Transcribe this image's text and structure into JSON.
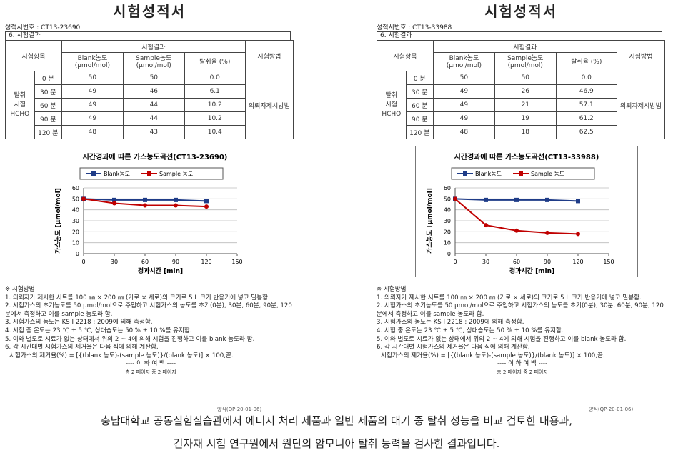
{
  "docs": [
    {
      "title": "시험성적서",
      "report_no": "성적서번호 : CT13-23690",
      "section": "6. 시험결과",
      "table": {
        "head": [
          "시험항목",
          "시험결과",
          "시험방법"
        ],
        "subhead": [
          [
            "Blank농도",
            "(μmol/mol)"
          ],
          [
            "Sample농도",
            "(μmol/mol)"
          ],
          [
            "탈취율 (%)"
          ]
        ],
        "item": [
          "탈취",
          "시험",
          "HCHO"
        ],
        "rows": [
          [
            "0 분",
            "50",
            "50",
            "0.0"
          ],
          [
            "30 분",
            "49",
            "46",
            "6.1"
          ],
          [
            "60 분",
            "49",
            "44",
            "10.2"
          ],
          [
            "90 분",
            "49",
            "44",
            "10.2"
          ],
          [
            "120 분",
            "48",
            "43",
            "10.4"
          ]
        ],
        "method": "의뢰자제시방법"
      },
      "chart_data": {
        "type": "line",
        "title": "시간경과에 따른 가스농도곡선(CT13-23690)",
        "x_label": "경과시간 [min]",
        "y_label": "가스농도 [μmol/mol]",
        "x": [
          0,
          30,
          60,
          90,
          120
        ],
        "series": [
          {
            "name": "Blank농도",
            "color": "#1f3c88",
            "values": [
              50,
              49,
              49,
              49,
              48
            ]
          },
          {
            "name": "Sample 농도",
            "color": "#c00000",
            "values": [
              50,
              46,
              44,
              44,
              43
            ]
          }
        ],
        "xlim": [
          0,
          150
        ],
        "xticks": [
          0,
          30,
          60,
          90,
          120,
          150
        ],
        "ylim": [
          0,
          60
        ],
        "yticks": [
          0,
          10,
          20,
          30,
          40,
          50,
          60
        ],
        "grid": true
      },
      "notes": {
        "heading": "※ 시험방법",
        "items": [
          "1. 의뢰자가 제시한 시트를 100 ㎜ × 200 ㎜ (가로 × 세로)의 크기로 5 L 크기 반응기에 넣고 밀봉함.",
          "2. 시험가스의 초기농도를 50 μmol/mol으로 주입하고 시험가스의 농도를 초기(0분), 30분, 60분, 90분, 120분에서 측정하고 이를 sample 농도라 함.",
          "3. 시험가스의 농도는 KS I 2218 : 2009에 의해 측정함.",
          "4. 시험 중 온도는 23 ℃ ± 5 ℃, 상대습도는 50 % ± 10 %를 유지함.",
          "5. 이와 별도로 시료가 없는 상태에서 위의 2 ~ 4에 의해 시험을 진행하고 이를 blank 농도라 함.",
          "6. 각 시간대별 시험가스의 제거율은 다음 식에 의해 계산함.",
          "시험가스의 제거율(%) = [{(blank 농도)-(sample 농도)}/(blank 농도)] × 100,끝."
        ],
        "end": "---- 이 하 여 백 ----",
        "page": "총 2 페이지 중 2 페이지",
        "form": "양식(QP-20-01-06)"
      }
    },
    {
      "title": "시험성적서",
      "report_no": "성적서번호 : CT13-33988",
      "section": "6. 시험결과",
      "table": {
        "head": [
          "시험항목",
          "시험결과",
          "시험방법"
        ],
        "subhead": [
          [
            "Blank농도",
            "(μmol/mol)"
          ],
          [
            "Sample농도",
            "(μmol/mol)"
          ],
          [
            "탈취율 (%)"
          ]
        ],
        "item": [
          "탈취",
          "시험",
          "HCHO"
        ],
        "rows": [
          [
            "0 분",
            "50",
            "50",
            "0.0"
          ],
          [
            "30 분",
            "49",
            "26",
            "46.9"
          ],
          [
            "60 분",
            "49",
            "21",
            "57.1"
          ],
          [
            "90 분",
            "49",
            "19",
            "61.2"
          ],
          [
            "120 분",
            "48",
            "18",
            "62.5"
          ]
        ],
        "method": "의뢰자제시방법"
      },
      "chart_data": {
        "type": "line",
        "title": "시간경과에 따른 가스농도곡선(CT13-33988)",
        "x_label": "경과시간 [min]",
        "y_label": "가스농도 [μmol/mol]",
        "x": [
          0,
          30,
          60,
          90,
          120
        ],
        "series": [
          {
            "name": "Blank농도",
            "color": "#1f3c88",
            "values": [
              50,
              49,
              49,
              49,
              48
            ]
          },
          {
            "name": "Sample 농도",
            "color": "#c00000",
            "values": [
              50,
              26,
              21,
              19,
              18
            ]
          }
        ],
        "xlim": [
          0,
          150
        ],
        "xticks": [
          0,
          30,
          60,
          90,
          120,
          150
        ],
        "ylim": [
          0,
          60
        ],
        "yticks": [
          0,
          10,
          20,
          30,
          40,
          50,
          60
        ],
        "grid": true
      },
      "notes": {
        "heading": "※ 시험방법",
        "items": [
          "1. 의뢰자가 제시한 시트를 100 ㎜ × 200 ㎜ (가로 × 세로)의 크기로 5 L 크기 반응기에 넣고 밀봉함.",
          "2. 시험가스의 초기농도를 50 μmol/mol으로 주입하고 시험가스의 농도를 초기(0분), 30분, 60분, 90분, 120분에서 측정하고 이를 sample 농도라 함.",
          "3. 시험가스의 농도는 KS I 2218 : 2009에 의해 측정함.",
          "4. 시험 중 온도는 23 ℃ ± 5 ℃, 상대습도는 50 % ± 10 %를 유지함.",
          "5. 이와 별도로 시료가 없는 상태에서 위의 2 ~ 4에 의해 시험을 진행하고 이를 blank 농도라 함.",
          "6. 각 시간대별 시험가스의 제거율은 다음 식에 의해 계산함.",
          "시험가스의 제거율(%) = [{(blank 농도)-(sample 농도)}/(blank 농도)] × 100,끝."
        ],
        "end": "---- 이 하 여 백 ----",
        "page": "총 2 페이지 중 2 페이지",
        "form": "양식(QP-20-01-06)"
      }
    }
  ],
  "caption": [
    "충남대학교 공동실험실습관에서 에너지 처리 제품과 일반 제품의 대기 중 탈취 성능을 비교 검토한 내용과,",
    "건자재 시험 연구원에서 원단의  암모니아 탈취 능력을 검사한 결과입니다."
  ]
}
